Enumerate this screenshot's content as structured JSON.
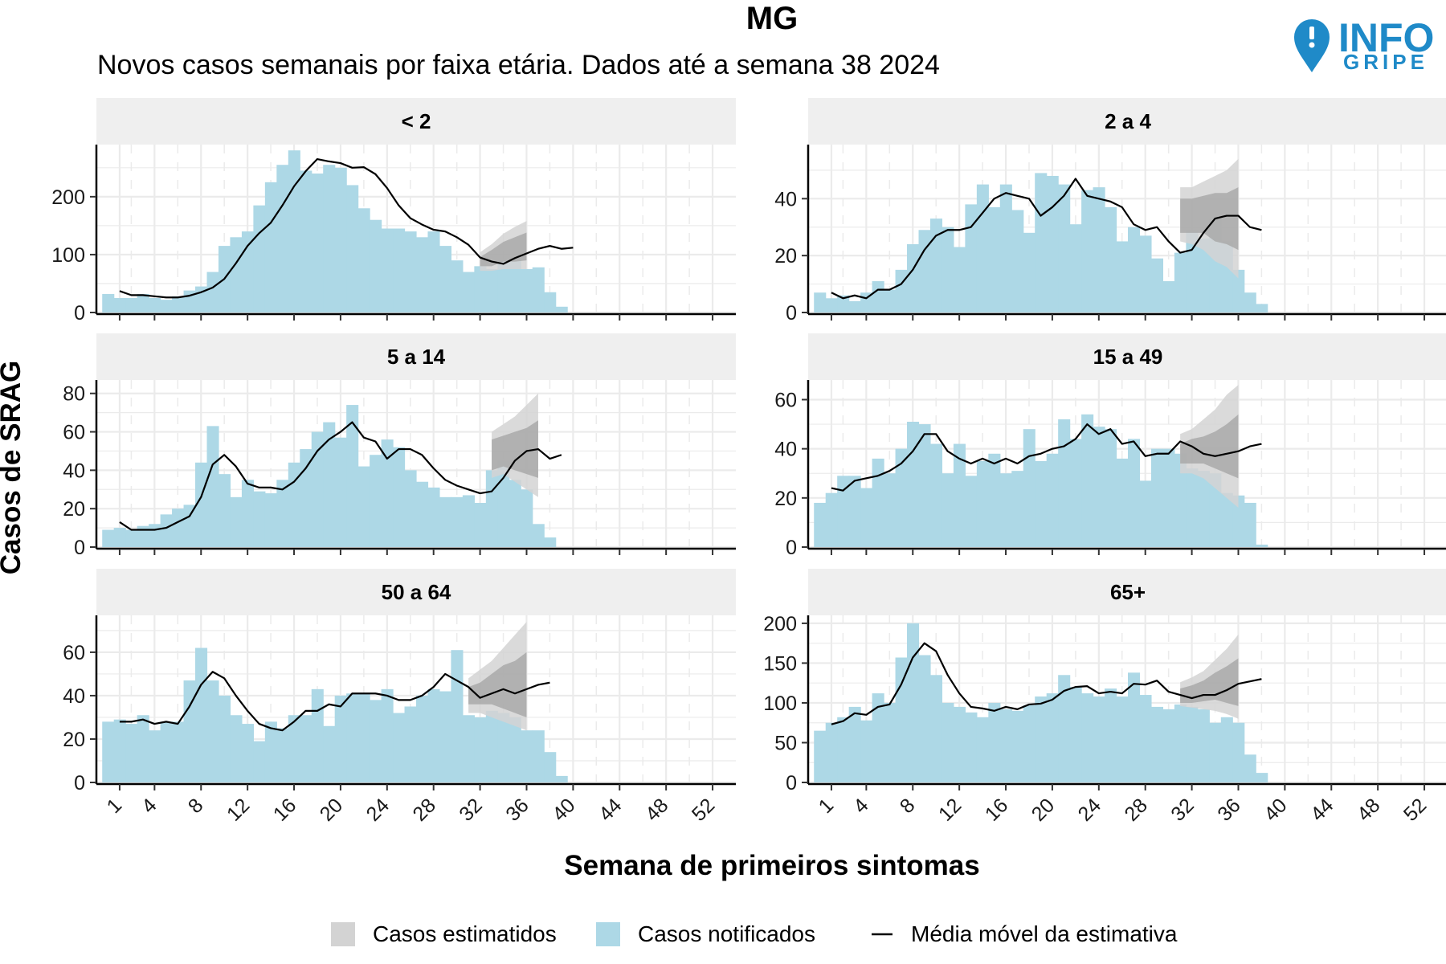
{
  "title": "MG",
  "subtitle": "Novos casos semanais por faixa etária. Dados até a semana 38 2024",
  "logo": {
    "top": "INFO",
    "bottom": "GRIPE"
  },
  "colors": {
    "reported": "#add8e6",
    "estimate_outer": "#d3d3d3",
    "estimate_inner": "#a9a9a9",
    "line": "#000000",
    "strip": "#efefef",
    "grid": "#ebebeb"
  },
  "chart_data": {
    "type": "bar",
    "xlabel": "Semana de primeiros sintomas",
    "ylabel": "Casos de SRAG",
    "x_ticks": [
      1,
      4,
      8,
      12,
      16,
      20,
      24,
      28,
      32,
      36,
      40,
      44,
      48,
      52
    ],
    "xlim": [
      -1,
      54
    ],
    "legend": {
      "position": "bottom",
      "items": [
        "Casos estimatidos",
        "Casos notificados",
        "Média móvel da estimativa"
      ]
    },
    "panels": [
      {
        "name": "< 2",
        "yticks": [
          0,
          100,
          200
        ],
        "ylim": [
          0,
          290
        ],
        "bars": [
          32,
          25,
          25,
          32,
          25,
          22,
          28,
          38,
          45,
          70,
          115,
          130,
          140,
          185,
          225,
          255,
          280,
          245,
          240,
          255,
          250,
          220,
          180,
          160,
          145,
          145,
          140,
          130,
          140,
          115,
          90,
          70,
          80,
          75,
          90,
          90,
          75,
          78,
          35,
          10
        ],
        "line": [
          37,
          30,
          30,
          28,
          26,
          26,
          29,
          35,
          43,
          58,
          85,
          115,
          137,
          155,
          185,
          218,
          244,
          265,
          261,
          258,
          250,
          251,
          239,
          215,
          185,
          163,
          152,
          143,
          140,
          130,
          117,
          95,
          88,
          84,
          94,
          102,
          110,
          115,
          110,
          112
        ],
        "band_from": 32,
        "band_inner": [
          [
            80,
            96
          ],
          [
            80,
            108
          ],
          [
            88,
            122
          ],
          [
            88,
            130
          ],
          [
            90,
            138
          ]
        ],
        "band_outer": [
          [
            72,
            104
          ],
          [
            72,
            118
          ],
          [
            75,
            136
          ],
          [
            75,
            148
          ],
          [
            75,
            158
          ]
        ]
      },
      {
        "name": "2 a 4",
        "yticks": [
          0,
          20,
          40
        ],
        "ylim": [
          0,
          59
        ],
        "bars": [
          7,
          5,
          6,
          4,
          7,
          11,
          8,
          15,
          24,
          29,
          33,
          30,
          23,
          38,
          45,
          37,
          45,
          36,
          28,
          49,
          48,
          45,
          31,
          43,
          44,
          37,
          25,
          30,
          27,
          19,
          11,
          21,
          29,
          26,
          33,
          25,
          15,
          7,
          3
        ],
        "line": [
          7,
          5,
          6,
          5,
          8,
          8,
          10,
          15,
          22,
          27,
          29,
          29,
          30,
          35,
          40,
          42,
          41,
          40,
          34,
          37,
          41,
          47,
          41,
          40,
          39,
          37,
          31,
          29,
          30,
          25,
          21,
          22,
          28,
          33,
          34,
          34,
          30,
          29
        ],
        "band_from": 31,
        "band_inner": [
          [
            28,
            40
          ],
          [
            28,
            40
          ],
          [
            28,
            41
          ],
          [
            25,
            42
          ],
          [
            24,
            42
          ],
          [
            22,
            44
          ]
        ],
        "band_outer": [
          [
            25,
            44
          ],
          [
            24,
            44
          ],
          [
            22,
            46
          ],
          [
            18,
            48
          ],
          [
            16,
            50
          ],
          [
            12,
            54
          ]
        ]
      },
      {
        "name": "5 a 14",
        "yticks": [
          0,
          20,
          40,
          60,
          80
        ],
        "ylim": [
          0,
          87
        ],
        "bars": [
          9,
          10,
          9,
          11,
          12,
          17,
          20,
          22,
          44,
          63,
          38,
          26,
          35,
          29,
          28,
          35,
          44,
          51,
          60,
          65,
          57,
          74,
          42,
          48,
          56,
          52,
          40,
          34,
          31,
          26,
          26,
          27,
          23,
          40,
          45,
          35,
          30,
          12,
          5
        ],
        "line": [
          13,
          9,
          9,
          9,
          10,
          13,
          16,
          26,
          43,
          48,
          42,
          33,
          31,
          31,
          30,
          34,
          41,
          50,
          56,
          60,
          65,
          57,
          55,
          46,
          51,
          51,
          48,
          41,
          35,
          32,
          30,
          28,
          29,
          36,
          45,
          50,
          51,
          46,
          48
        ],
        "band_from": 33,
        "band_inner": [
          [
            40,
            56
          ],
          [
            42,
            58
          ],
          [
            40,
            60
          ],
          [
            38,
            62
          ],
          [
            36,
            66
          ]
        ],
        "band_outer": [
          [
            36,
            60
          ],
          [
            38,
            64
          ],
          [
            34,
            68
          ],
          [
            30,
            74
          ],
          [
            26,
            80
          ]
        ]
      },
      {
        "name": "15 a 49",
        "yticks": [
          0,
          20,
          40,
          60
        ],
        "ylim": [
          0,
          68
        ],
        "bars": [
          18,
          22,
          29,
          29,
          24,
          36,
          30,
          40,
          51,
          50,
          42,
          30,
          42,
          29,
          35,
          38,
          30,
          31,
          48,
          35,
          38,
          52,
          44,
          54,
          49,
          48,
          36,
          44,
          27,
          40,
          40,
          38,
          32,
          31,
          30,
          22,
          21,
          18,
          1
        ],
        "line": [
          24,
          23,
          27,
          28,
          29,
          31,
          34,
          39,
          46,
          46,
          39,
          36,
          34,
          36,
          34,
          36,
          34,
          37,
          38,
          40,
          41,
          44,
          50,
          46,
          48,
          42,
          43,
          37,
          38,
          38,
          43,
          41,
          38,
          37,
          38,
          39,
          41,
          42
        ],
        "band_from": 31,
        "band_inner": [
          [
            34,
            42
          ],
          [
            34,
            44
          ],
          [
            34,
            45
          ],
          [
            32,
            47
          ],
          [
            30,
            50
          ],
          [
            28,
            54
          ]
        ],
        "band_outer": [
          [
            30,
            46
          ],
          [
            30,
            48
          ],
          [
            28,
            52
          ],
          [
            24,
            56
          ],
          [
            20,
            62
          ],
          [
            16,
            66
          ]
        ]
      },
      {
        "name": "50 a 64",
        "yticks": [
          0,
          20,
          40,
          60
        ],
        "ylim": [
          0,
          77
        ],
        "bars": [
          28,
          29,
          27,
          31,
          24,
          28,
          28,
          47,
          62,
          47,
          40,
          31,
          27,
          19,
          28,
          25,
          31,
          31,
          43,
          26,
          40,
          41,
          41,
          38,
          43,
          32,
          35,
          40,
          43,
          42,
          61,
          31,
          30,
          33,
          32,
          30,
          24,
          24,
          14,
          3
        ],
        "line": [
          28,
          28,
          29,
          27,
          28,
          27,
          35,
          45,
          51,
          48,
          40,
          33,
          27,
          25,
          24,
          28,
          33,
          33,
          36,
          35,
          41,
          41,
          41,
          40,
          38,
          38,
          40,
          44,
          50,
          47,
          44,
          39,
          41,
          43,
          41,
          43,
          45,
          46
        ],
        "band_from": 31,
        "band_inner": [
          [
            36,
            44
          ],
          [
            36,
            46
          ],
          [
            36,
            50
          ],
          [
            34,
            54
          ],
          [
            32,
            56
          ],
          [
            30,
            60
          ]
        ],
        "band_outer": [
          [
            32,
            48
          ],
          [
            32,
            52
          ],
          [
            30,
            56
          ],
          [
            28,
            62
          ],
          [
            26,
            68
          ],
          [
            24,
            74
          ]
        ]
      },
      {
        "name": "65+",
        "yticks": [
          0,
          50,
          100,
          150,
          200
        ],
        "ylim": [
          0,
          210
        ],
        "bars": [
          65,
          75,
          82,
          95,
          78,
          112,
          100,
          157,
          200,
          160,
          135,
          100,
          95,
          88,
          82,
          100,
          92,
          90,
          97,
          108,
          112,
          135,
          120,
          112,
          108,
          118,
          108,
          138,
          110,
          95,
          92,
          98,
          95,
          92,
          75,
          82,
          75,
          35,
          12
        ],
        "line": [
          73,
          77,
          87,
          85,
          95,
          98,
          123,
          157,
          175,
          165,
          135,
          112,
          95,
          93,
          90,
          95,
          92,
          98,
          99,
          104,
          115,
          120,
          121,
          112,
          114,
          112,
          124,
          123,
          128,
          114,
          110,
          106,
          110,
          110,
          116,
          124,
          127,
          130
        ],
        "band_from": 31,
        "band_inner": [
          [
            100,
            118
          ],
          [
            100,
            122
          ],
          [
            102,
            128
          ],
          [
            104,
            138
          ],
          [
            100,
            146
          ],
          [
            96,
            156
          ]
        ],
        "band_outer": [
          [
            96,
            126
          ],
          [
            94,
            132
          ],
          [
            92,
            140
          ],
          [
            90,
            154
          ],
          [
            86,
            168
          ],
          [
            80,
            186
          ]
        ]
      }
    ]
  }
}
